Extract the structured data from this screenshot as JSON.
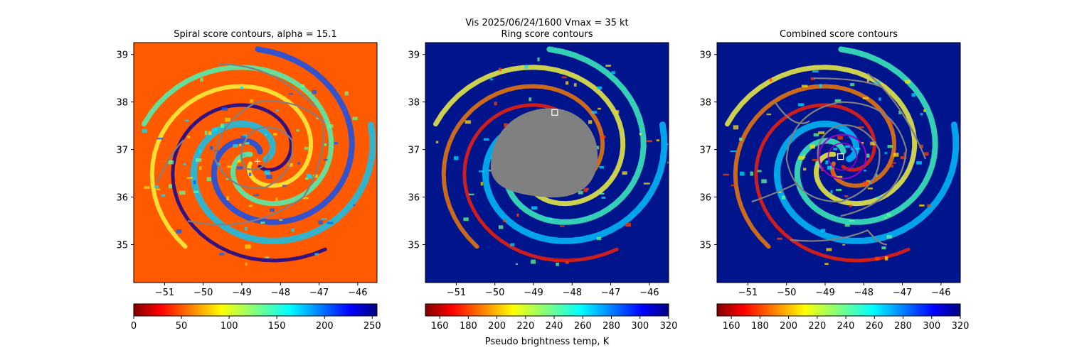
{
  "figure": {
    "suptitle_line1": "Vis  2025/06/24/1600    Vmax = 35 kt"
  },
  "chart_data": [
    {
      "type": "heatmap",
      "title": "Spiral score contours, alpha = 15.1",
      "xlim": [
        -51.8,
        -45.5
      ],
      "ylim": [
        34.2,
        39.25
      ],
      "xticks": [
        -51,
        -50,
        -49,
        -48,
        -47,
        -46
      ],
      "yticks": [
        35,
        36,
        37,
        38,
        39
      ],
      "background_color": "#ff5a00",
      "contour_color": "#808080",
      "colorbar": {
        "vmin": 0,
        "vmax": 255,
        "ticks": [
          0,
          50,
          100,
          150,
          200,
          250
        ],
        "cmap": "jet_r",
        "label": ""
      },
      "center_marker": {
        "lon": -48.6,
        "lat": 36.75,
        "symbol": "+"
      }
    },
    {
      "type": "heatmap",
      "title": "Ring score contours",
      "xlim": [
        -51.8,
        -45.5
      ],
      "ylim": [
        34.2,
        39.25
      ],
      "xticks": [
        -51,
        -50,
        -49,
        -48,
        -47,
        -46
      ],
      "yticks": [
        35,
        36,
        37,
        38,
        39
      ],
      "background_color": "#00148c",
      "masked_region_color": "#808080",
      "colorbar": {
        "vmin": 150,
        "vmax": 320,
        "ticks": [
          160,
          180,
          200,
          220,
          240,
          260,
          280,
          300,
          320
        ],
        "cmap": "jet_r",
        "label": "Pseudo brightness temp, K"
      },
      "center_marker": {
        "lon": -48.45,
        "lat": 37.78,
        "symbol": "square"
      }
    },
    {
      "type": "heatmap",
      "title": "Combined score contours",
      "xlim": [
        -51.8,
        -45.5
      ],
      "ylim": [
        34.2,
        39.25
      ],
      "xticks": [
        -51,
        -50,
        -49,
        -48,
        -47,
        -46
      ],
      "yticks": [
        35,
        36,
        37,
        38,
        39
      ],
      "background_color": "#00148c",
      "contour_color": "#808080",
      "ring_color": "#a000c8",
      "colorbar": {
        "vmin": 150,
        "vmax": 320,
        "ticks": [
          160,
          180,
          200,
          220,
          240,
          260,
          280,
          300,
          320
        ],
        "cmap": "jet_r",
        "label": ""
      },
      "center_marker": {
        "lon": -48.6,
        "lat": 36.85,
        "symbol": "square"
      }
    }
  ]
}
